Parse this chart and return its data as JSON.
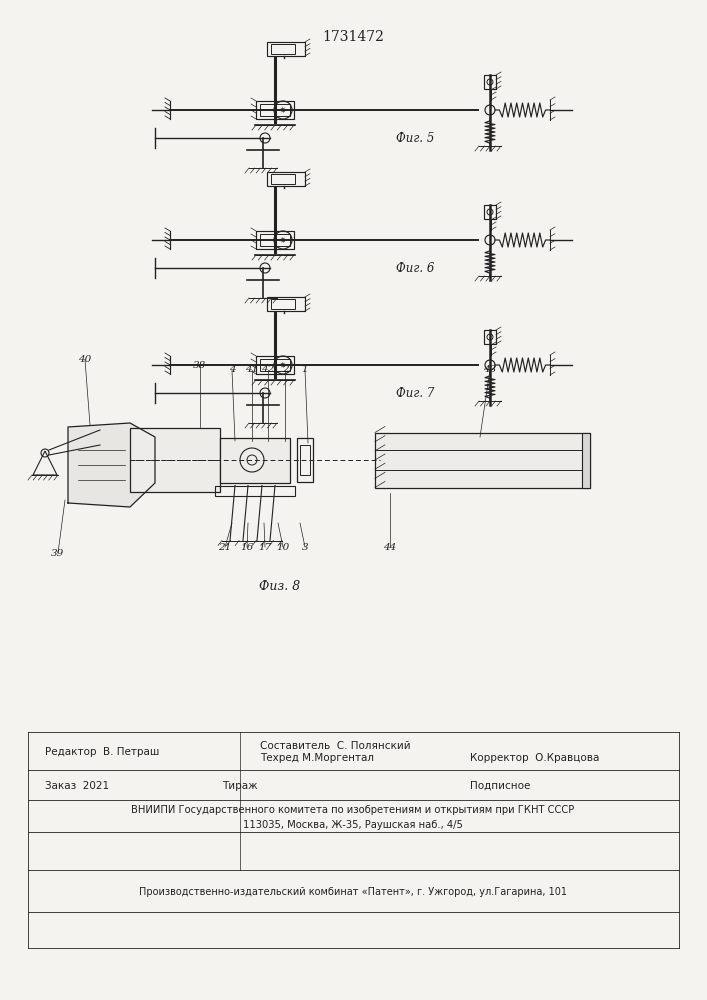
{
  "title": "1731472",
  "fig5_label": "Фиг. 5",
  "fig6_label": "Фиг. 6",
  "fig7_label": "Фиг. 7",
  "fig8_label": "Физ. 8",
  "bg_color": "#f5f3f0",
  "line_color": "#222222",
  "footer_row1_left": "Редактор  В. Петраш",
  "footer_row1_center": "Составитель  С. Полянский",
  "footer_row2_center": "Техред М.Моргентал",
  "footer_row2_right": "Корректор  О.Кравцова",
  "footer_zakaz": "Заказ  2021",
  "footer_tirazh": "Тираж",
  "footer_podp": "Подписное",
  "footer_vniip": "ВНИИПИ Государственного комитета по изобретениям и открытиям при ГКНТ СССР",
  "footer_addr": "113035, Москва, Ж-35, Раушская наб., 4/5",
  "footer_patent": "Производственно-издательский комбинат «Патент», г. Ужгород, ул.Гагарина, 101"
}
